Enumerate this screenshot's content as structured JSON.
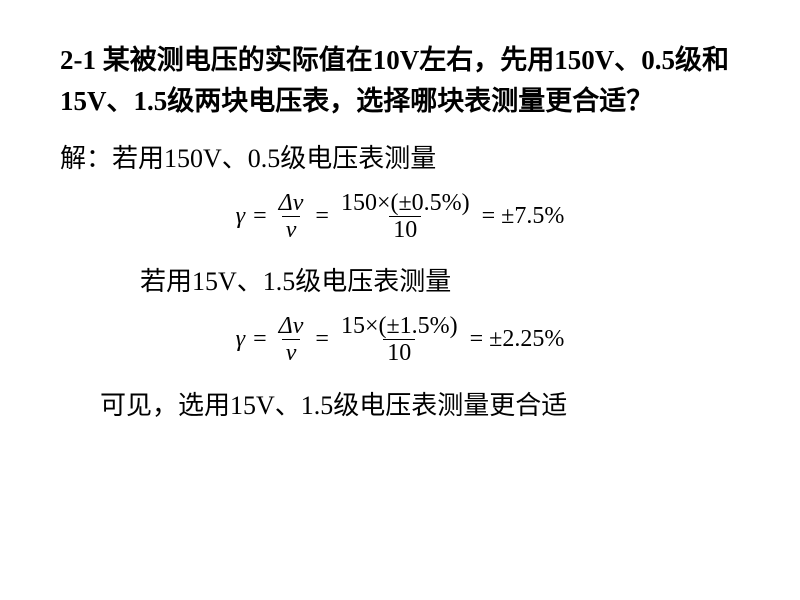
{
  "problem": {
    "text": "2-1 某被测电压的实际值在10V左右，先用150V、0.5级和15V、1.5级两块电压表，选择哪块表测量更合适？"
  },
  "solution": {
    "intro": "解：若用150V、0.5级电压表测量",
    "eq1": {
      "gamma": "γ",
      "eq": "=",
      "frac1_num": "Δv",
      "frac1_den": "v",
      "frac2_num": "150×(±0.5%)",
      "frac2_den": "10",
      "result": "= ±7.5%"
    },
    "mid": "若用15V、1.5级电压表测量",
    "eq2": {
      "gamma": "γ",
      "eq": "=",
      "frac1_num": "Δv",
      "frac1_den": "v",
      "frac2_num": "15×(±1.5%)",
      "frac2_den": "10",
      "result": "= ±2.25%"
    },
    "conclusion": "可见，选用15V、1.5级电压表测量更合适"
  },
  "style": {
    "bg": "#ffffff",
    "text_color": "#000000",
    "problem_fontsize": 27,
    "body_fontsize": 26,
    "eq_fontsize": 24,
    "font_family_cjk": "SimSun",
    "font_family_math": "Times New Roman"
  }
}
